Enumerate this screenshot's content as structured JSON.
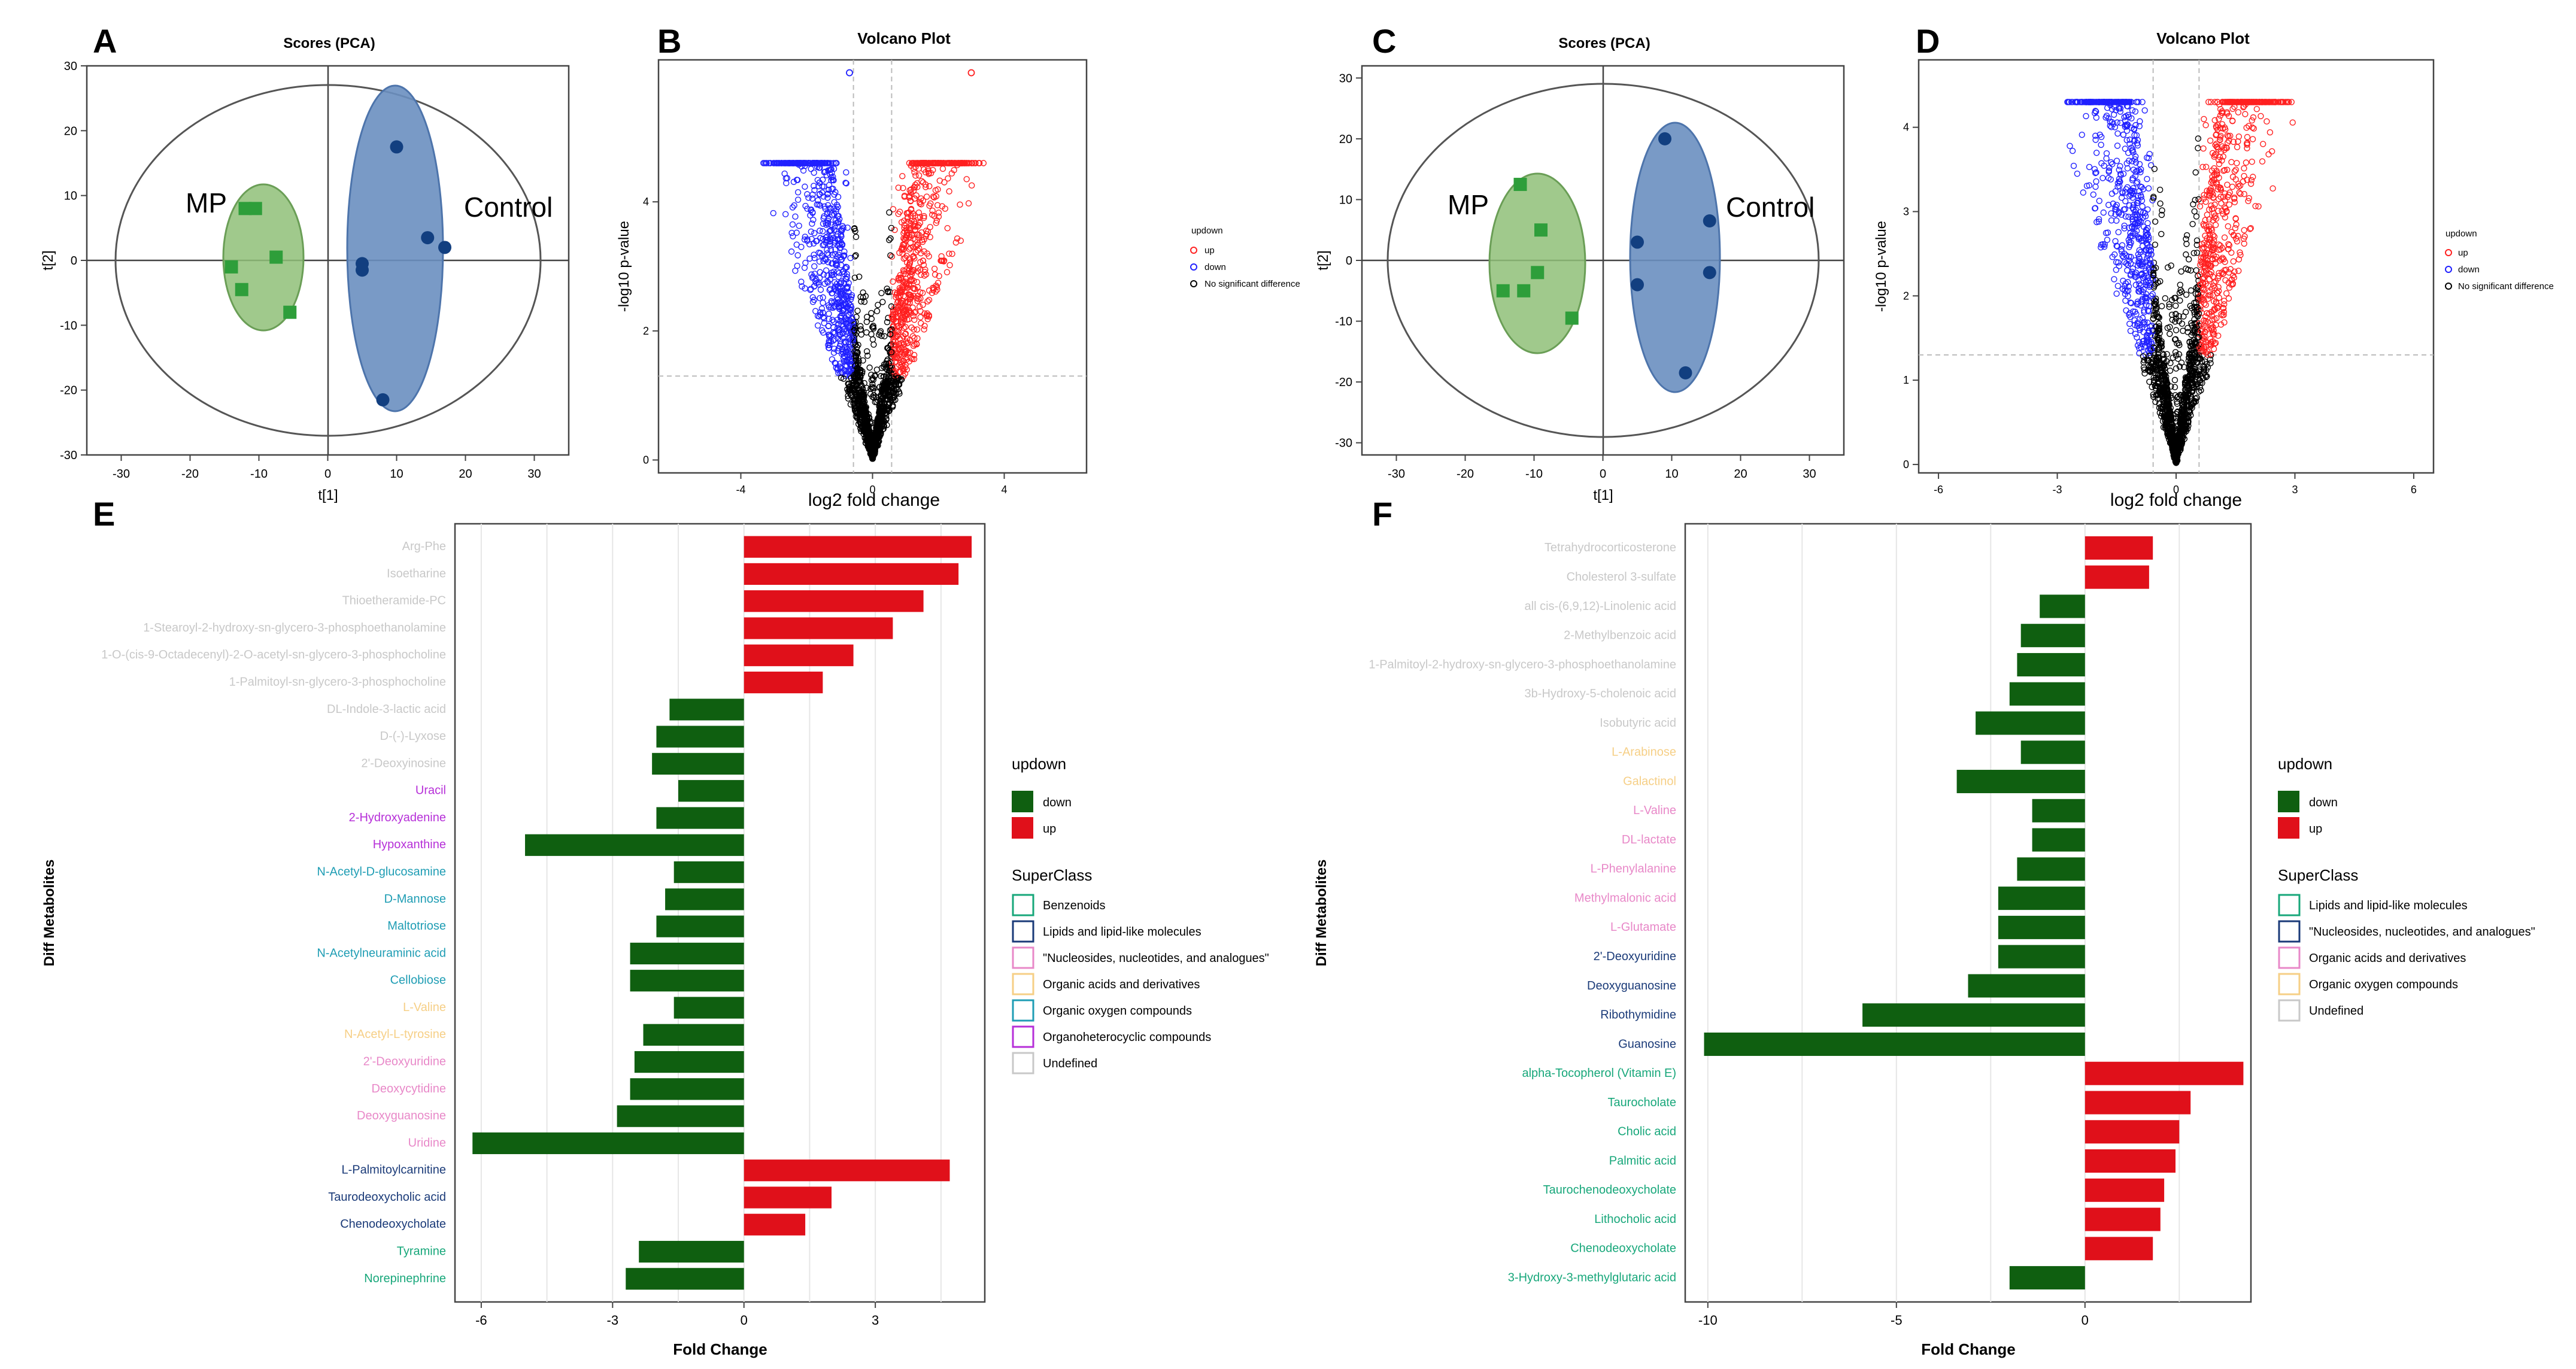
{
  "panel_letters": {
    "A": "A",
    "B": "B",
    "C": "C",
    "D": "D",
    "E": "E",
    "F": "F"
  },
  "colors": {
    "mp": "#2e9e3a",
    "control": "#123f80",
    "mp_ellipse": "#8fbf78",
    "control_ellipse": "#6a8fc0",
    "up": "#e0101a",
    "down": "#0f5f10",
    "volcano_up": "#ff2020",
    "volcano_down": "#2020ff",
    "volcano_ns": "#000000"
  },
  "chart_data": [
    {
      "id": "A",
      "type": "scatter",
      "title": "Scores (PCA)",
      "xlabel": "t[1]",
      "ylabel": "t[2]",
      "xlim": [
        -35,
        35
      ],
      "ylim": [
        -30,
        30
      ],
      "xticks": [
        -30,
        -20,
        -10,
        0,
        10,
        20,
        30
      ],
      "yticks": [
        -30,
        -20,
        -10,
        0,
        10,
        20,
        30
      ],
      "groups": [
        {
          "name": "MP",
          "marker": "square",
          "points": [
            [
              -12,
              8
            ],
            [
              -10.5,
              8
            ],
            [
              -14,
              -1
            ],
            [
              -12.5,
              -4.5
            ],
            [
              -7.5,
              0.5
            ],
            [
              -5.5,
              -8
            ]
          ]
        },
        {
          "name": "Control",
          "marker": "circle",
          "points": [
            [
              10,
              17.5
            ],
            [
              5,
              -0.5
            ],
            [
              5,
              -1.5
            ],
            [
              14.5,
              3.5
            ],
            [
              17,
              2
            ],
            [
              8,
              -21.5
            ]
          ]
        }
      ]
    },
    {
      "id": "B",
      "type": "scatter",
      "title": "Volcano Plot",
      "xlabel": "log2 fold change",
      "ylabel": "-log10 p-value",
      "xlim": [
        -6.5,
        6.5
      ],
      "ylim": [
        -0.2,
        6.2
      ],
      "xticks": [
        -4,
        0,
        4
      ],
      "yticks": [
        0,
        2,
        4
      ],
      "vlines": [
        -0.58,
        0.58
      ],
      "hline": 1.3,
      "legend": {
        "title": "updown",
        "entries": [
          "up",
          "down",
          "No significant difference"
        ]
      },
      "highlight": {
        "up": [
          [
            3.0,
            6.0
          ]
        ],
        "down": [
          [
            -0.7,
            6.0
          ]
        ]
      }
    },
    {
      "id": "C",
      "type": "scatter",
      "title": "Scores (PCA)",
      "xlabel": "t[1]",
      "ylabel": "t[2]",
      "xlim": [
        -35,
        35
      ],
      "ylim": [
        -32,
        32
      ],
      "xticks": [
        -30,
        -20,
        -10,
        0,
        10,
        20,
        30
      ],
      "yticks": [
        -30,
        -20,
        -10,
        0,
        10,
        20,
        30
      ],
      "groups": [
        {
          "name": "MP",
          "marker": "square",
          "points": [
            [
              -12,
              12.5
            ],
            [
              -9,
              5
            ],
            [
              -9.5,
              -2
            ],
            [
              -11.5,
              -5
            ],
            [
              -14.5,
              -5
            ],
            [
              -4.5,
              -9.5
            ]
          ]
        },
        {
          "name": "Control",
          "marker": "circle",
          "points": [
            [
              9,
              20
            ],
            [
              15.5,
              6.5
            ],
            [
              5,
              3
            ],
            [
              5,
              -4
            ],
            [
              15.5,
              -2
            ],
            [
              12,
              -18.5
            ]
          ]
        }
      ]
    },
    {
      "id": "D",
      "type": "scatter",
      "title": "Volcano Plot",
      "xlabel": "log2 fold change",
      "ylabel": "-log10 p-value",
      "xlim": [
        -6.5,
        6.5
      ],
      "ylim": [
        -0.1,
        4.8
      ],
      "xticks": [
        -6,
        -3,
        0,
        3,
        6
      ],
      "yticks": [
        0,
        1,
        2,
        3,
        4
      ],
      "vlines": [
        -0.58,
        0.58
      ],
      "hline": 1.3,
      "legend": {
        "title": "updown",
        "entries": [
          "up",
          "down",
          "No significant difference"
        ]
      }
    },
    {
      "id": "E",
      "type": "bar",
      "orientation": "horizontal",
      "xlabel": "Fold Change",
      "ylabel": "Diff Metabolites",
      "xlim": [
        -6.6,
        5.5
      ],
      "xticks": [
        -6,
        -3,
        0,
        3
      ],
      "legend_updown": {
        "title": "updown",
        "entries": [
          "down",
          "up"
        ]
      },
      "legend_superclass": {
        "title": "SuperClass",
        "entries": [
          {
            "label": "Benzenoids",
            "color": "#17a77a"
          },
          {
            "label": "Lipids and lipid-like molecules",
            "color": "#1a3a78"
          },
          {
            "label": "\"Nucleosides, nucleotides, and analogues\"",
            "color": "#e888c8"
          },
          {
            "label": "Organic acids and derivatives",
            "color": "#f6cf86"
          },
          {
            "label": "Organic oxygen compounds",
            "color": "#1f9db4"
          },
          {
            "label": "Organoheterocyclic compounds",
            "color": "#b62fd8"
          },
          {
            "label": "Undefined",
            "color": "#c8c8c8"
          }
        ]
      },
      "categories": [
        "Arg-Phe",
        "Isoetharine",
        "Thioetheramide-PC",
        "1-Stearoyl-2-hydroxy-sn-glycero-3-phosphoethanolamine",
        "1-O-(cis-9-Octadecenyl)-2-O-acetyl-sn-glycero-3-phosphocholine",
        "1-Palmitoyl-sn-glycero-3-phosphocholine",
        "DL-Indole-3-lactic acid",
        "D-(-)-Lyxose",
        "2'-Deoxyinosine",
        "Uracil",
        "2-Hydroxyadenine",
        "Hypoxanthine",
        "N-Acetyl-D-glucosamine",
        "D-Mannose",
        "Maltotriose",
        "N-Acetylneuraminic acid",
        "Cellobiose",
        "L-Valine",
        "N-Acetyl-L-tyrosine",
        "2'-Deoxyuridine",
        "Deoxycytidine",
        "Deoxyguanosine",
        "Uridine",
        "L-Palmitoylcarnitine",
        "Taurodeoxycholic acid",
        "Chenodeoxycholate",
        "Tyramine",
        "Norepinephrine"
      ],
      "label_colors": [
        "#c8c8c8",
        "#c8c8c8",
        "#c8c8c8",
        "#c8c8c8",
        "#c8c8c8",
        "#c8c8c8",
        "#c8c8c8",
        "#c8c8c8",
        "#c8c8c8",
        "#b62fd8",
        "#b62fd8",
        "#b62fd8",
        "#1f9db4",
        "#1f9db4",
        "#1f9db4",
        "#1f9db4",
        "#1f9db4",
        "#f6cf86",
        "#f6cf86",
        "#e888c8",
        "#e888c8",
        "#e888c8",
        "#e888c8",
        "#1a3a78",
        "#1a3a78",
        "#1a3a78",
        "#17a77a",
        "#17a77a"
      ],
      "values": [
        5.2,
        4.9,
        4.1,
        3.4,
        2.5,
        1.8,
        -1.7,
        -2.0,
        -2.1,
        -1.5,
        -2.0,
        -5.0,
        -1.6,
        -1.8,
        -2.0,
        -2.6,
        -2.6,
        -1.6,
        -2.3,
        -2.5,
        -2.6,
        -2.9,
        -6.2,
        4.7,
        2.0,
        1.4,
        -2.4,
        -2.7
      ]
    },
    {
      "id": "F",
      "type": "bar",
      "orientation": "horizontal",
      "xlabel": "Fold Change",
      "ylabel": "Diff Metabolites",
      "xlim": [
        -10.6,
        4.4
      ],
      "xticks": [
        -10,
        -5,
        0
      ],
      "legend_updown": {
        "title": "updown",
        "entries": [
          "down",
          "up"
        ]
      },
      "legend_superclass": {
        "title": "SuperClass",
        "entries": [
          {
            "label": "Lipids and lipid-like molecules",
            "color": "#17a77a"
          },
          {
            "label": "\"Nucleosides, nucleotides, and analogues\"",
            "color": "#1a3a78"
          },
          {
            "label": "Organic acids and derivatives",
            "color": "#e888c8"
          },
          {
            "label": "Organic oxygen compounds",
            "color": "#f6cf86"
          },
          {
            "label": "Undefined",
            "color": "#c8c8c8"
          }
        ]
      },
      "categories": [
        "Tetrahydrocorticosterone",
        "Cholesterol 3-sulfate",
        "all cis-(6,9,12)-Linolenic acid",
        "2-Methylbenzoic acid",
        "1-Palmitoyl-2-hydroxy-sn-glycero-3-phosphoethanolamine",
        "3b-Hydroxy-5-cholenoic acid",
        "Isobutyric acid",
        "L-Arabinose",
        "Galactinol",
        "L-Valine",
        "DL-lactate",
        "L-Phenylalanine",
        "Methylmalonic acid",
        "L-Glutamate",
        "2'-Deoxyuridine",
        "Deoxyguanosine",
        "Ribothymidine",
        "Guanosine",
        "alpha-Tocopherol (Vitamin E)",
        "Taurocholate",
        "Cholic acid",
        "Palmitic acid",
        "Taurochenodeoxycholate",
        "Lithocholic acid",
        "Chenodeoxycholate",
        "3-Hydroxy-3-methylglutaric acid"
      ],
      "label_colors": [
        "#c8c8c8",
        "#c8c8c8",
        "#c8c8c8",
        "#c8c8c8",
        "#c8c8c8",
        "#c8c8c8",
        "#c8c8c8",
        "#f6cf86",
        "#f6cf86",
        "#e888c8",
        "#e888c8",
        "#e888c8",
        "#e888c8",
        "#e888c8",
        "#1a3a78",
        "#1a3a78",
        "#1a3a78",
        "#1a3a78",
        "#17a77a",
        "#17a77a",
        "#17a77a",
        "#17a77a",
        "#17a77a",
        "#17a77a",
        "#17a77a",
        "#17a77a"
      ],
      "values": [
        1.8,
        1.7,
        -1.2,
        -1.7,
        -1.8,
        -2.0,
        -2.9,
        -1.7,
        -3.4,
        -1.4,
        -1.4,
        -1.8,
        -2.3,
        -2.3,
        -2.3,
        -3.1,
        -5.9,
        -10.1,
        4.2,
        2.8,
        2.5,
        2.4,
        2.1,
        2.0,
        1.8,
        -2.0
      ]
    }
  ]
}
